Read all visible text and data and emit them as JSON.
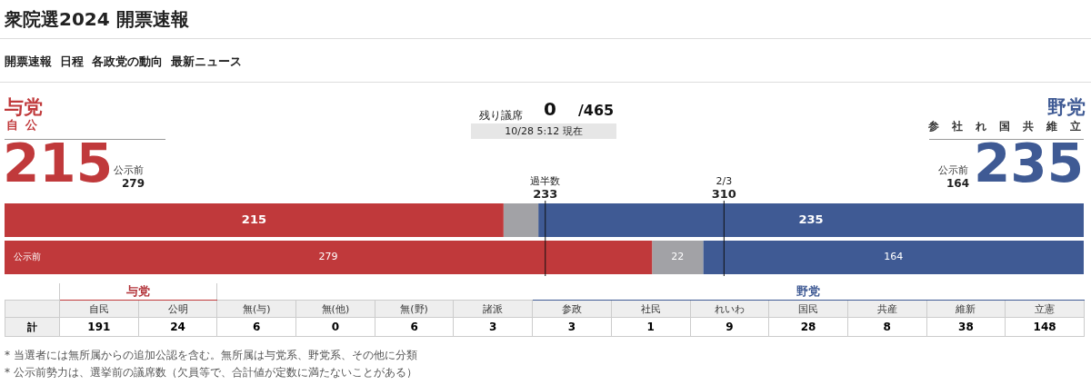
{
  "chart_data": [
    {
      "type": "other",
      "title": "衆院選2024 開票速報",
      "annotations": [
        "開票速報",
        "日程",
        "各政党の動向",
        "最新ニュース"
      ]
    },
    {
      "type": "bar",
      "orientation": "horizontal",
      "stacked": true,
      "categories": [
        null,
        "公示前"
      ],
      "xlim": [
        0,
        465
      ],
      "tick_labels": false,
      "legend": false,
      "series": [
        {
          "name": "与党",
          "color": "#c0393b",
          "values": [
            215,
            279
          ],
          "value_labels": [
            "215",
            "279"
          ]
        },
        {
          "color": "#a2a2a6",
          "values": [
            15,
            22
          ],
          "value_labels": [
            null,
            "22"
          ]
        },
        {
          "name": "野党",
          "color": "#3f5a94",
          "values": [
            235,
            164
          ],
          "value_labels": [
            "235",
            "164"
          ]
        }
      ],
      "ref_lines": [
        {
          "axis": "x",
          "value": 233,
          "label": "過半数\n233"
        },
        {
          "axis": "x",
          "value": 310,
          "label": "2/3\n310"
        }
      ],
      "annotations": [
        "自 公",
        "参 社 れ 国 共 維 立",
        "残り議席",
        "0",
        "/465",
        "10/28 5:12 現在",
        "215",
        "279",
        "235",
        "164"
      ]
    },
    {
      "type": "other",
      "categories": [
        "自民",
        "公明",
        "無(与)",
        "無(他)",
        "無(野)",
        "諸派",
        "参政",
        "社民",
        "れいわ",
        "国民",
        "共産",
        "維新",
        "立憲"
      ],
      "values": [
        191,
        24,
        6,
        0,
        6,
        3,
        3,
        1,
        9,
        28,
        8,
        38,
        148
      ],
      "data_labels": true,
      "ylabel": "計",
      "annotations": [
        "与党",
        "野党",
        "* 当選者には無所属からの追加公認を含む。無所属は与党系、野党系、その他に分類",
        "* 公示前勢力は、選挙前の議席数（欠員等で、合計値が定数に満たないことがある）"
      ]
    }
  ]
}
